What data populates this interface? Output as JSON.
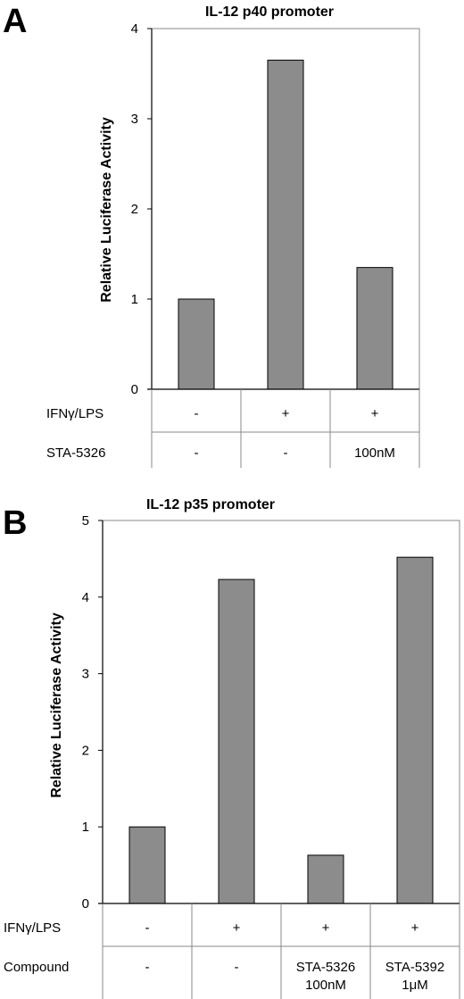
{
  "chart_data": [
    {
      "type": "bar",
      "panel": "A",
      "title": "IL-12 p40 promoter",
      "ylabel": "Relative Luciferase Activity",
      "ylim": [
        0,
        4
      ],
      "yticks": [
        "0",
        "1",
        "2",
        "3",
        "4"
      ],
      "values": [
        1.0,
        3.65,
        1.35
      ],
      "bar_color": "#8c8c8c",
      "grid": false,
      "rows": [
        {
          "label": "IFNγ/LPS",
          "cells": [
            [
              "-"
            ],
            [
              "+"
            ],
            [
              "+"
            ]
          ]
        },
        {
          "label": "STA-5326",
          "cells": [
            [
              "-"
            ],
            [
              "-"
            ],
            [
              "100nM"
            ]
          ]
        }
      ]
    },
    {
      "type": "bar",
      "panel": "B",
      "title": "IL-12 p35 promoter",
      "ylabel": "Relative Luciferase Activity",
      "ylim": [
        0,
        5
      ],
      "yticks": [
        "0",
        "1",
        "2",
        "3",
        "4",
        "5"
      ],
      "values": [
        1.0,
        4.23,
        0.63,
        4.52
      ],
      "bar_color": "#8c8c8c",
      "grid": false,
      "rows": [
        {
          "label": "IFNγ/LPS",
          "cells": [
            [
              "-"
            ],
            [
              "+"
            ],
            [
              "+"
            ],
            [
              "+"
            ]
          ]
        },
        {
          "label": "Compound",
          "cells": [
            [
              "-"
            ],
            [
              "-"
            ],
            [
              "STA-5326",
              "100nM"
            ],
            [
              "STA-5392",
              "1μM"
            ]
          ]
        }
      ]
    }
  ]
}
